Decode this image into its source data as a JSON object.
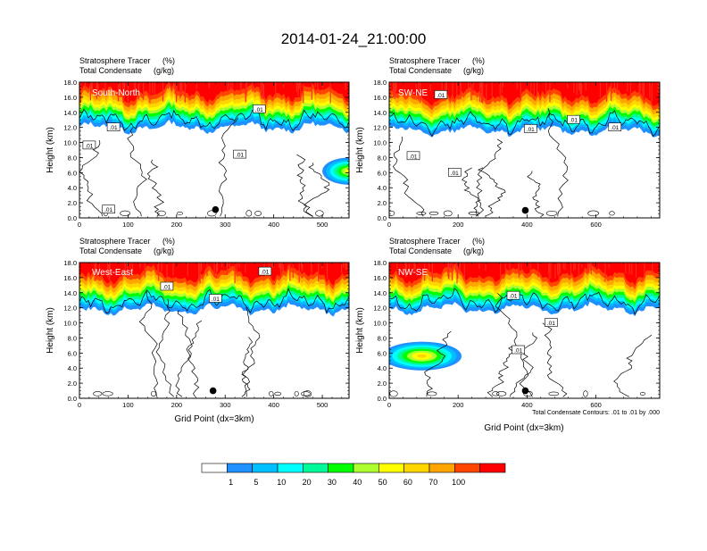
{
  "title": "2014-01-24_21:00:00",
  "colors": {
    "levels": [
      "#ffffff",
      "#1e90ff",
      "#00bfff",
      "#00ffff",
      "#00fa9a",
      "#00ff00",
      "#adff2f",
      "#ffff00",
      "#ffd700",
      "#ffa500",
      "#ff4500",
      "#ff0000"
    ],
    "contour_line": "#000000"
  },
  "colorbar": {
    "labels": [
      "1",
      "5",
      "10",
      "20",
      "30",
      "40",
      "50",
      "60",
      "70",
      "100"
    ]
  },
  "contour_note": "Total Condensate Contours: .01 to .01 by .000",
  "chart_data": [
    {
      "type": "heatmap",
      "name": "South-North",
      "subtitle1_label": "Stratosphere Tracer",
      "subtitle1_unit": "(%)",
      "subtitle2_label": "Total Condensate",
      "subtitle2_unit": "(g/kg)",
      "ylabel": "Height (km)",
      "xlabel": "",
      "xlim": [
        0,
        555
      ],
      "ylim": [
        0,
        18
      ],
      "xticks": [
        "0",
        "100",
        "200",
        "300",
        "400",
        "500"
      ],
      "xtick_values": [
        0,
        100,
        200,
        300,
        400,
        500
      ],
      "yticks": [
        "0.0",
        "2.0",
        "4.0",
        "6.0",
        "8.0",
        "10.0",
        "12.0",
        "14.0",
        "16.0",
        "18.0"
      ],
      "tracer_base_km": 13.6,
      "blob": {
        "x_center": 555,
        "y_center": 6.2,
        "x_radius": 55,
        "y_radius": 1.8,
        "peak_percent": 60
      },
      "contour_labels": [
        {
          "text": ".01",
          "x": 20,
          "y": 9.6
        },
        {
          "text": ".01",
          "x": 70,
          "y": 12.0
        },
        {
          "text": ".01",
          "x": 330,
          "y": 8.4
        },
        {
          "text": ".01",
          "x": 370,
          "y": 14.4
        },
        {
          "text": ".01",
          "x": 60,
          "y": 1.1
        }
      ],
      "marker": {
        "x": 280,
        "y": 1.1
      }
    },
    {
      "type": "heatmap",
      "name": "SW-NE",
      "subtitle1_label": "Stratosphere Tracer",
      "subtitle1_unit": "(%)",
      "subtitle2_label": "Total Condensate",
      "subtitle2_unit": "(g/kg)",
      "ylabel": "Height (km)",
      "xlabel": "",
      "xlim": [
        0,
        785
      ],
      "ylim": [
        0,
        18
      ],
      "xticks": [
        "0",
        "200",
        "400",
        "600"
      ],
      "xtick_values": [
        0,
        200,
        400,
        600
      ],
      "yticks": [
        "0.0",
        "2.0",
        "4.0",
        "6.0",
        "8.0",
        "10.0",
        "12.0",
        "14.0",
        "16.0",
        "18.0"
      ],
      "tracer_base_km": 13.2,
      "blob": null,
      "contour_labels": [
        {
          "text": ".01",
          "x": 150,
          "y": 16.3
        },
        {
          "text": ".01",
          "x": 70,
          "y": 8.2
        },
        {
          "text": ".01",
          "x": 190,
          "y": 6.0
        },
        {
          "text": ".01",
          "x": 410,
          "y": 11.8
        },
        {
          "text": ".01",
          "x": 535,
          "y": 13.0
        },
        {
          "text": ".01",
          "x": 655,
          "y": 12.0
        }
      ],
      "marker": {
        "x": 395,
        "y": 1.0
      }
    },
    {
      "type": "heatmap",
      "name": "West-East",
      "subtitle1_label": "Stratosphere Tracer",
      "subtitle1_unit": "(%)",
      "subtitle2_label": "Total Condensate",
      "subtitle2_unit": "(g/kg)",
      "ylabel": "Height (km)",
      "xlabel": "Grid Point (dx=3km)",
      "xlim": [
        0,
        555
      ],
      "ylim": [
        0,
        18
      ],
      "xticks": [
        "0",
        "100",
        "200",
        "300",
        "400",
        "500"
      ],
      "xtick_values": [
        0,
        100,
        200,
        300,
        400,
        500
      ],
      "yticks": [
        "0.0",
        "2.0",
        "4.0",
        "6.0",
        "8.0",
        "10.0",
        "12.0",
        "14.0",
        "16.0",
        "18.0"
      ],
      "tracer_base_km": 13.4,
      "blob": null,
      "contour_labels": [
        {
          "text": ".01",
          "x": 180,
          "y": 14.8
        },
        {
          "text": ".01",
          "x": 280,
          "y": 13.2
        },
        {
          "text": ".01",
          "x": 382,
          "y": 16.8
        }
      ],
      "marker": {
        "x": 275,
        "y": 1.0
      }
    },
    {
      "type": "heatmap",
      "name": "NW-SE",
      "subtitle1_label": "Stratosphere Tracer",
      "subtitle1_unit": "(%)",
      "subtitle2_label": "Total Condensate",
      "subtitle2_unit": "(g/kg)",
      "ylabel": "Height (km)",
      "xlabel": "Grid Point (dx=3km)",
      "xlim": [
        0,
        785
      ],
      "ylim": [
        0,
        18
      ],
      "xticks": [
        "0",
        "200",
        "400",
        "600"
      ],
      "xtick_values": [
        0,
        200,
        400,
        600
      ],
      "yticks": [
        "0.0",
        "2.0",
        "4.0",
        "6.0",
        "8.0",
        "10.0",
        "12.0",
        "14.0",
        "16.0",
        "18.0"
      ],
      "tracer_base_km": 13.5,
      "blob": {
        "x_center": 95,
        "y_center": 5.6,
        "x_radius": 115,
        "y_radius": 1.9,
        "peak_percent": 70
      },
      "contour_labels": [
        {
          "text": ".01",
          "x": 360,
          "y": 13.6
        },
        {
          "text": ".01",
          "x": 375,
          "y": 6.4
        },
        {
          "text": ".01",
          "x": 470,
          "y": 10.0
        }
      ],
      "marker": {
        "x": 395,
        "y": 1.0
      }
    }
  ]
}
